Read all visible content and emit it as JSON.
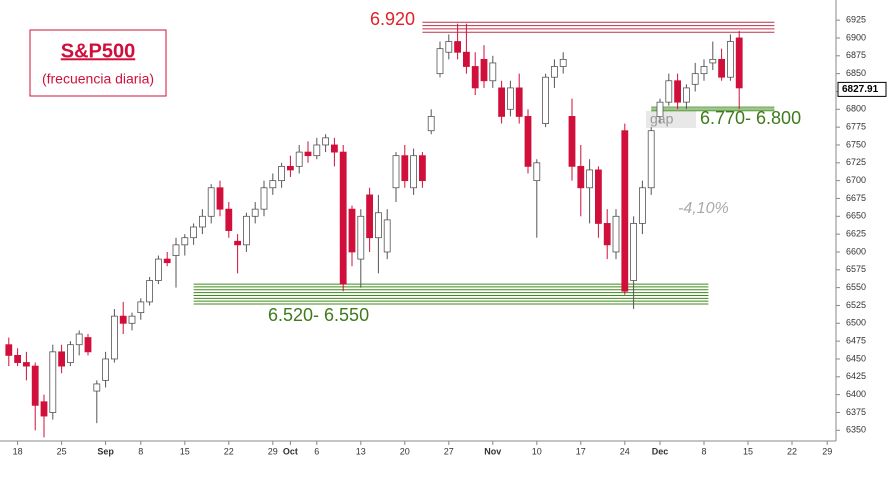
{
  "chart_data": {
    "type": "candlestick",
    "title": "S&P500",
    "subtitle": "(frecuencia diaria)",
    "annotations": [
      "6.920",
      "6.770- 6.800",
      "6.520- 6.550",
      "gap",
      "-4,10%"
    ],
    "last_price": 6827.91,
    "up_color": "#ffffff",
    "down_color": "#d0103a",
    "x": [
      1,
      2,
      3,
      4,
      5,
      6,
      7,
      8,
      9,
      10,
      11,
      12,
      13,
      14,
      15,
      16,
      17,
      18,
      19,
      20,
      21,
      22,
      23,
      24,
      25,
      26,
      27,
      28,
      29,
      30,
      31,
      32,
      33,
      34,
      35,
      36,
      37,
      38,
      39,
      40,
      41,
      42,
      43,
      44,
      45,
      46,
      47,
      48,
      49,
      50,
      51,
      52,
      53,
      54,
      55,
      56,
      57,
      58,
      59,
      60,
      61,
      62,
      63,
      64,
      65,
      66,
      67,
      68,
      69,
      70,
      71,
      72,
      73,
      74,
      75,
      76,
      77,
      78,
      79,
      80,
      81,
      82,
      83,
      84
    ],
    "open": [
      6470,
      6455,
      6445,
      6440,
      6390,
      6375,
      6460,
      6445,
      6470,
      6480,
      6405,
      6420,
      6450,
      6510,
      6500,
      6515,
      6530,
      6560,
      6590,
      6595,
      6610,
      6620,
      6635,
      6650,
      6690,
      6660,
      6615,
      6610,
      6650,
      6660,
      6690,
      6700,
      6720,
      6720,
      6740,
      6735,
      6750,
      6750,
      6740,
      6660,
      6590,
      6680,
      6620,
      6600,
      6690,
      6735,
      6690,
      6735,
      6770,
      6850,
      6880,
      6895,
      6880,
      6860,
      6870,
      6840,
      6830,
      6800,
      6830,
      6790,
      6700,
      6780,
      6845,
      6860,
      6790,
      6720,
      6690,
      6715,
      6640,
      6600,
      6770,
      6560,
      6640,
      6690,
      6790,
      6810,
      6840,
      6810,
      6835,
      6850,
      6865,
      6870,
      6845,
      6900
    ],
    "high": [
      6480,
      6465,
      6460,
      6445,
      6400,
      6470,
      6470,
      6475,
      6490,
      6485,
      6420,
      6460,
      6520,
      6530,
      6515,
      6535,
      6565,
      6595,
      6600,
      6620,
      6625,
      6640,
      6660,
      6695,
      6700,
      6670,
      6625,
      6655,
      6670,
      6700,
      6710,
      6725,
      6735,
      6750,
      6755,
      6760,
      6765,
      6760,
      6750,
      6665,
      6660,
      6690,
      6680,
      6660,
      6740,
      6750,
      6745,
      6740,
      6800,
      6895,
      6905,
      6920,
      6920,
      6880,
      6890,
      6875,
      6840,
      6840,
      6850,
      6800,
      6730,
      6850,
      6870,
      6880,
      6815,
      6750,
      6730,
      6720,
      6660,
      6660,
      6780,
      6650,
      6700,
      6775,
      6815,
      6850,
      6850,
      6835,
      6865,
      6870,
      6895,
      6885,
      6905,
      6910
    ],
    "low": [
      6440,
      6440,
      6420,
      6350,
      6340,
      6365,
      6430,
      6440,
      6455,
      6455,
      6360,
      6410,
      6445,
      6485,
      6490,
      6505,
      6525,
      6555,
      6580,
      6550,
      6595,
      6610,
      6625,
      6640,
      6650,
      6620,
      6570,
      6600,
      6640,
      6650,
      6680,
      6690,
      6705,
      6710,
      6725,
      6730,
      6740,
      6720,
      6545,
      6580,
      6550,
      6600,
      6570,
      6590,
      6670,
      6690,
      6680,
      6690,
      6765,
      6845,
      6870,
      6870,
      6850,
      6820,
      6830,
      6830,
      6780,
      6790,
      6780,
      6710,
      6620,
      6775,
      6830,
      6850,
      6700,
      6650,
      6640,
      6620,
      6590,
      6590,
      6540,
      6520,
      6625,
      6680,
      6780,
      6805,
      6800,
      6800,
      6825,
      6840,
      6855,
      6840,
      6840,
      6800
    ],
    "close": [
      6455,
      6445,
      6440,
      6385,
      6370,
      6460,
      6440,
      6470,
      6485,
      6460,
      6415,
      6450,
      6510,
      6500,
      6510,
      6530,
      6560,
      6590,
      6585,
      6610,
      6620,
      6635,
      6650,
      6690,
      6660,
      6630,
      6610,
      6650,
      6660,
      6690,
      6700,
      6720,
      6715,
      6740,
      6735,
      6750,
      6760,
      6740,
      6555,
      6600,
      6650,
      6620,
      6655,
      6645,
      6735,
      6700,
      6735,
      6700,
      6790,
      6885,
      6895,
      6880,
      6860,
      6830,
      6840,
      6865,
      6790,
      6830,
      6790,
      6720,
      6725,
      6845,
      6860,
      6870,
      6720,
      6690,
      6715,
      6640,
      6610,
      6650,
      6545,
      6640,
      6690,
      6770,
      6810,
      6840,
      6810,
      6830,
      6850,
      6860,
      6870,
      6845,
      6895,
      6830
    ],
    "bands": [
      {
        "from": 6908,
        "to": 6922,
        "color": "#c0304a",
        "x": [
          48,
          88
        ]
      },
      {
        "from": 6798,
        "to": 6803,
        "color": "#3f8a1c",
        "x": [
          74,
          88
        ]
      },
      {
        "from": 6527,
        "to": 6555,
        "color": "#3f8a1c",
        "x": [
          22,
          80.5
        ]
      }
    ],
    "xlim": [
      0,
      95
    ],
    "xticks": [
      {
        "value": 2,
        "label": "18"
      },
      {
        "value": 7,
        "label": "25"
      },
      {
        "value": 12,
        "label": "Sep"
      },
      {
        "value": 16,
        "label": "8"
      },
      {
        "value": 21,
        "label": "15"
      },
      {
        "value": 26,
        "label": "22"
      },
      {
        "value": 31,
        "label": "29"
      },
      {
        "value": 33,
        "label": "Oct"
      },
      {
        "value": 36,
        "label": "6"
      },
      {
        "value": 41,
        "label": "13"
      },
      {
        "value": 46,
        "label": "20"
      },
      {
        "value": 51,
        "label": "27"
      },
      {
        "value": 56,
        "label": "Nov"
      },
      {
        "value": 61,
        "label": "10"
      },
      {
        "value": 66,
        "label": "17"
      },
      {
        "value": 71,
        "label": "24"
      },
      {
        "value": 75,
        "label": "Dec"
      },
      {
        "value": 80,
        "label": "8"
      },
      {
        "value": 85,
        "label": "15"
      },
      {
        "value": 90,
        "label": "22"
      },
      {
        "value": 94,
        "label": "29"
      }
    ],
    "ylim": [
      6335,
      6935
    ],
    "yticks": [
      6350,
      6375,
      6400,
      6425,
      6450,
      6475,
      6500,
      6525,
      6550,
      6575,
      6600,
      6625,
      6650,
      6675,
      6700,
      6725,
      6750,
      6775,
      6800,
      6825,
      6850,
      6875,
      6900,
      6925
    ]
  }
}
